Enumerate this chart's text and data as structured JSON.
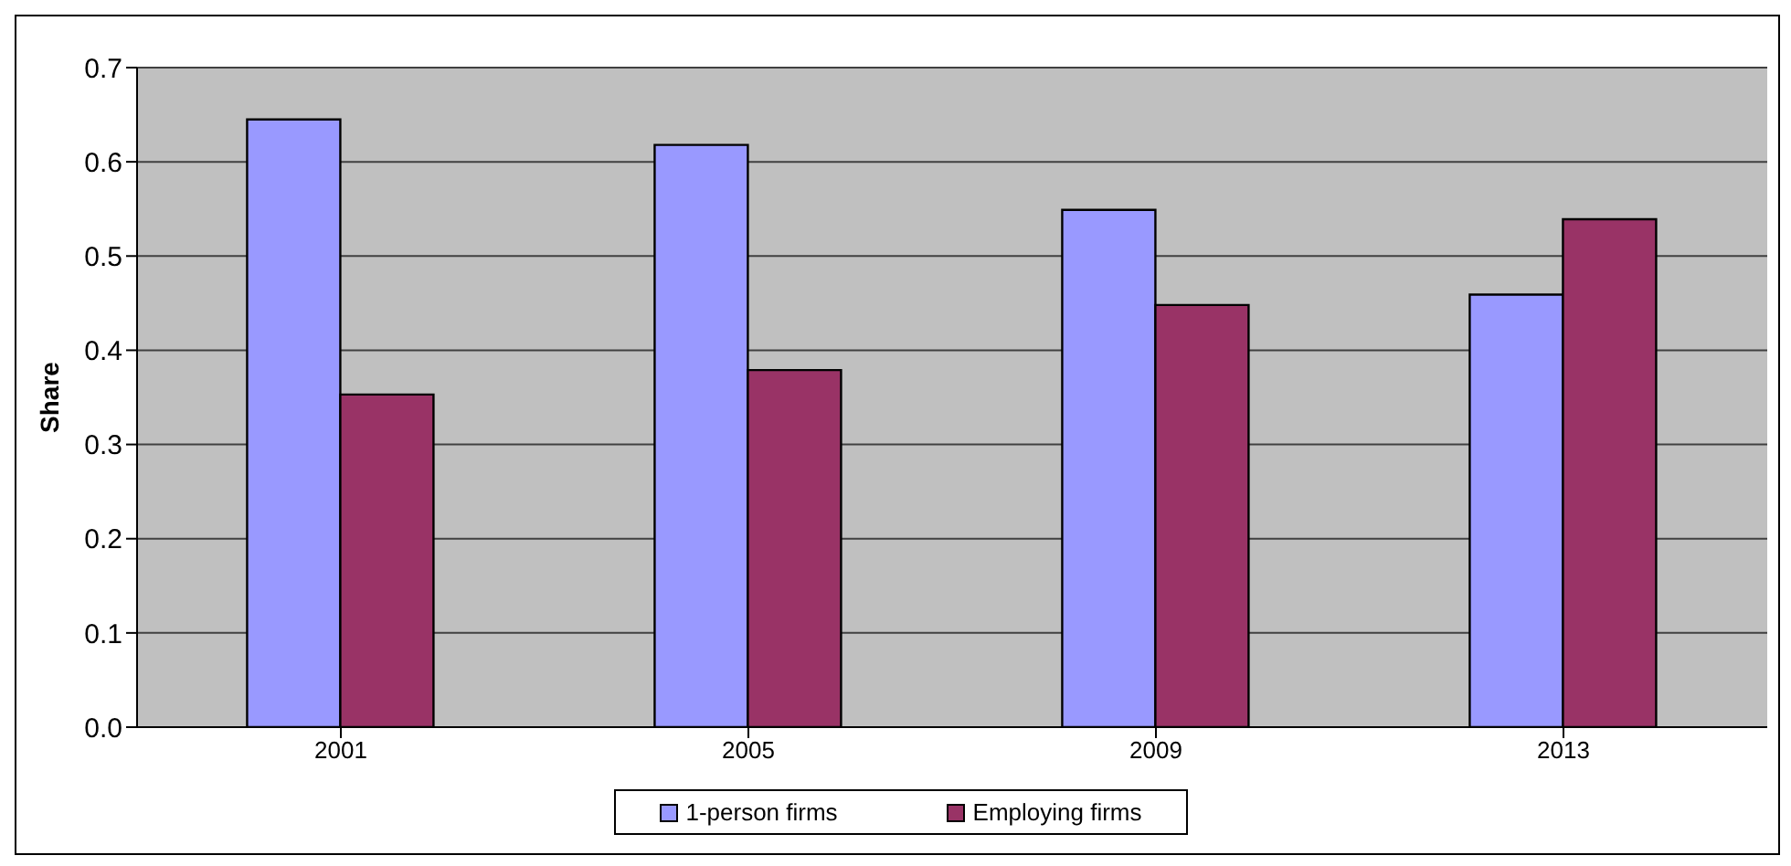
{
  "chart_data": {
    "type": "bar",
    "ylabel": "Share",
    "categories": [
      "2001",
      "2005",
      "2009",
      "2013"
    ],
    "series": [
      {
        "name": "1-person firms",
        "color": "#9999ff",
        "values": [
          0.645,
          0.618,
          0.549,
          0.459
        ]
      },
      {
        "name": "Employing firms",
        "color": "#993366",
        "values": [
          0.353,
          0.379,
          0.448,
          0.539
        ]
      }
    ],
    "ylim": [
      0,
      0.7
    ],
    "yticks": [
      {
        "value": 0,
        "label": "0.0"
      },
      {
        "value": 0.1,
        "label": "0.1"
      },
      {
        "value": 0.2,
        "label": "0.2"
      },
      {
        "value": 0.3,
        "label": "0.3"
      },
      {
        "value": 0.4,
        "label": "0.4"
      },
      {
        "value": 0.5,
        "label": "0.5"
      },
      {
        "value": 0.6,
        "label": "0.6"
      },
      {
        "value": 0.7,
        "label": "0.7"
      }
    ],
    "grid": "y",
    "legend": "bottom"
  }
}
